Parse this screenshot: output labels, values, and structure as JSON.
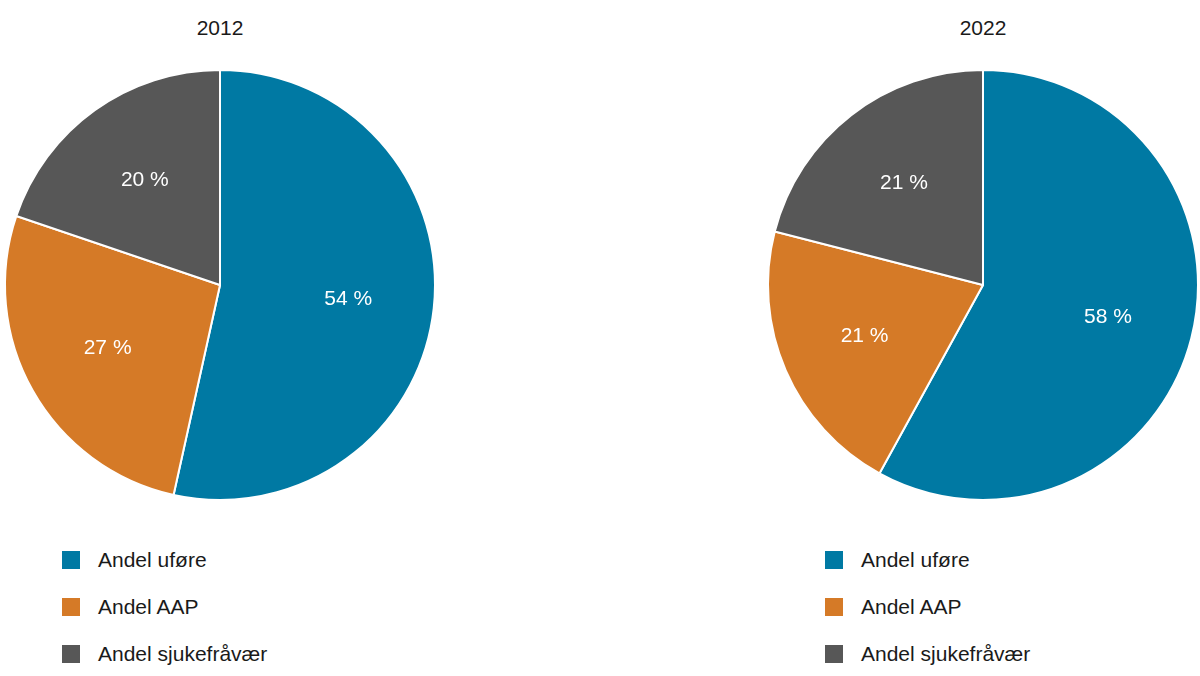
{
  "chart_data": [
    {
      "type": "pie",
      "title": "2012",
      "categories": [
        "Andel uføre",
        "Andel AAP",
        "Andel sjukefråvær"
      ],
      "values": [
        54,
        27,
        20
      ],
      "value_labels": [
        "54 %",
        "27 %",
        "20 %"
      ],
      "colors": [
        "#0079a3",
        "#d57a27",
        "#575757"
      ],
      "data_labels": true,
      "legend": "bottom"
    },
    {
      "type": "pie",
      "title": "2022",
      "categories": [
        "Andel uføre",
        "Andel AAP",
        "Andel sjukefråvær"
      ],
      "values": [
        58,
        21,
        21
      ],
      "value_labels": [
        "58 %",
        "21 %",
        "21 %"
      ],
      "colors": [
        "#0079a3",
        "#d57a27",
        "#575757"
      ],
      "data_labels": true,
      "legend": "bottom"
    }
  ]
}
